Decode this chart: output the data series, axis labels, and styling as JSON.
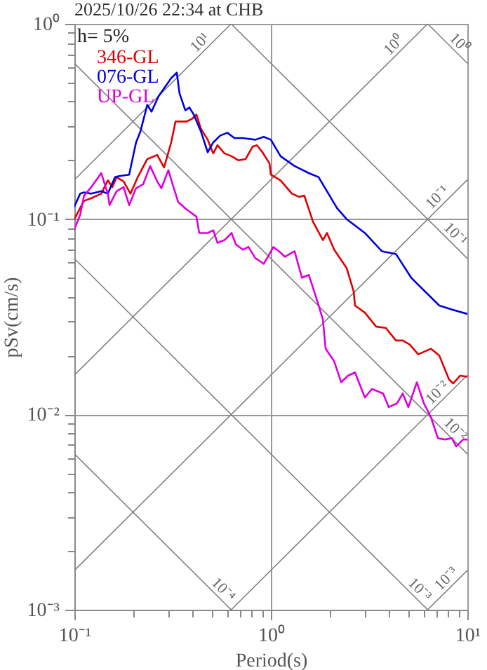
{
  "chart_data": {
    "type": "line",
    "title": "2025/10/26 22:34 at CHB",
    "xlabel": "Period(s)",
    "ylabel": "pSv(cm/s)",
    "legend_title": "h= 5%",
    "legend": "top left",
    "log": "xy",
    "grid": true,
    "xlim": [
      0.1,
      10
    ],
    "ylim": [
      0.001,
      1
    ],
    "xticks": [
      {
        "value": 0.1,
        "label": "10⁻¹"
      },
      {
        "value": 0.2,
        "label": null
      },
      {
        "value": 0.3,
        "label": null
      },
      {
        "value": 0.4,
        "label": null
      },
      {
        "value": 0.5,
        "label": null
      },
      {
        "value": 0.6,
        "label": null
      },
      {
        "value": 0.7,
        "label": null
      },
      {
        "value": 0.8,
        "label": null
      },
      {
        "value": 0.9,
        "label": null
      },
      {
        "value": 1,
        "label": "10⁰"
      },
      {
        "value": 2,
        "label": null
      },
      {
        "value": 3,
        "label": null
      },
      {
        "value": 4,
        "label": null
      },
      {
        "value": 5,
        "label": null
      },
      {
        "value": 6,
        "label": null
      },
      {
        "value": 7,
        "label": null
      },
      {
        "value": 8,
        "label": null
      },
      {
        "value": 9,
        "label": null
      },
      {
        "value": 10,
        "label": "10¹"
      }
    ],
    "yticks": [
      {
        "value": 0.001,
        "label": "10⁻³"
      },
      {
        "value": 0.002,
        "label": null
      },
      {
        "value": 0.003,
        "label": null
      },
      {
        "value": 0.004,
        "label": null
      },
      {
        "value": 0.005,
        "label": null
      },
      {
        "value": 0.006,
        "label": null
      },
      {
        "value": 0.007,
        "label": null
      },
      {
        "value": 0.008,
        "label": null
      },
      {
        "value": 0.009,
        "label": null
      },
      {
        "value": 0.01,
        "label": "10⁻²"
      },
      {
        "value": 0.02,
        "label": null
      },
      {
        "value": 0.03,
        "label": null
      },
      {
        "value": 0.04,
        "label": null
      },
      {
        "value": 0.05,
        "label": null
      },
      {
        "value": 0.06,
        "label": null
      },
      {
        "value": 0.07,
        "label": null
      },
      {
        "value": 0.08,
        "label": null
      },
      {
        "value": 0.09,
        "label": null
      },
      {
        "value": 0.1,
        "label": "10⁻¹"
      },
      {
        "value": 0.2,
        "label": null
      },
      {
        "value": 0.3,
        "label": null
      },
      {
        "value": 0.4,
        "label": null
      },
      {
        "value": 0.5,
        "label": null
      },
      {
        "value": 0.6,
        "label": null
      },
      {
        "value": 0.7,
        "label": null
      },
      {
        "value": 0.8,
        "label": null
      },
      {
        "value": 0.9,
        "label": null
      },
      {
        "value": 1,
        "label": "10⁰"
      }
    ],
    "series": [
      {
        "color": "#808080",
        "x": [
          0.1,
          0.628
        ],
        "values": [
          0.159,
          1
        ]
      },
      {
        "color": "#808080",
        "x": [
          0.1,
          6.28
        ],
        "values": [
          0.0159,
          1
        ]
      },
      {
        "color": "#808080",
        "x": [
          0.1,
          10
        ],
        "values": [
          0.00159,
          0.159
        ]
      },
      {
        "color": "#808080",
        "x": [
          0.628,
          10
        ],
        "values": [
          0.001,
          0.0159
        ]
      },
      {
        "color": "#808080",
        "x": [
          6.28,
          10
        ],
        "values": [
          0.001,
          0.00159
        ]
      },
      {
        "color": "#808080",
        "x": [
          6.28,
          10
        ],
        "values": [
          1,
          0.628
        ]
      },
      {
        "color": "#808080",
        "x": [
          0.628,
          10
        ],
        "values": [
          1,
          0.0628
        ]
      },
      {
        "color": "#808080",
        "x": [
          0.1,
          10
        ],
        "values": [
          0.628,
          0.00628
        ]
      },
      {
        "color": "#808080",
        "x": [
          0.1,
          6.28
        ],
        "values": [
          0.0628,
          0.001
        ]
      },
      {
        "color": "#808080",
        "x": [
          0.1,
          0.628
        ],
        "values": [
          0.00628,
          0.001
        ]
      },
      {
        "name": "346-GL",
        "color": "#e00000",
        "x": [
          0.1,
          0.107,
          0.112,
          0.122,
          0.137,
          0.148,
          0.156,
          0.164,
          0.178,
          0.193,
          0.21,
          0.235,
          0.264,
          0.286,
          0.311,
          0.327,
          0.373,
          0.398,
          0.418,
          0.44,
          0.477,
          0.509,
          0.535,
          0.581,
          0.631,
          0.685,
          0.744,
          0.807,
          0.849,
          0.906,
          0.984,
          1.0,
          1.12,
          1.28,
          1.39,
          1.48,
          1.64,
          1.84,
          1.93,
          2.1,
          2.43,
          2.64,
          2.68,
          3.01,
          3.43,
          3.85,
          4.33,
          4.69,
          5.09,
          5.62,
          6.52,
          7.2,
          8.07,
          8.48,
          9.2,
          10
        ],
        "values": [
          0.1,
          0.114,
          0.124,
          0.128,
          0.135,
          0.158,
          0.146,
          0.164,
          0.156,
          0.135,
          0.164,
          0.203,
          0.213,
          0.184,
          0.247,
          0.316,
          0.316,
          0.327,
          0.343,
          0.291,
          0.255,
          0.217,
          0.239,
          0.217,
          0.21,
          0.2,
          0.203,
          0.235,
          0.239,
          0.22,
          0.193,
          0.169,
          0.158,
          0.135,
          0.13,
          0.132,
          0.0968,
          0.0781,
          0.0849,
          0.0697,
          0.0562,
          0.0425,
          0.0361,
          0.0332,
          0.0282,
          0.0277,
          0.0239,
          0.0239,
          0.0228,
          0.0203,
          0.0217,
          0.02,
          0.0151,
          0.0144,
          0.0158,
          0.0156
        ]
      },
      {
        "name": "076-GL",
        "color": "#0000e0",
        "x": [
          0.1,
          0.107,
          0.112,
          0.122,
          0.137,
          0.148,
          0.161,
          0.169,
          0.19,
          0.206,
          0.217,
          0.235,
          0.247,
          0.268,
          0.311,
          0.332,
          0.343,
          0.367,
          0.385,
          0.405,
          0.44,
          0.477,
          0.509,
          0.553,
          0.601,
          0.652,
          0.72,
          0.834,
          0.92,
          1.0,
          1.12,
          1.32,
          1.56,
          1.75,
          2.17,
          2.43,
          3.01,
          3.67,
          4.33,
          5.18,
          7.2,
          8.48,
          10
        ],
        "values": [
          0.116,
          0.135,
          0.137,
          0.135,
          0.139,
          0.135,
          0.164,
          0.166,
          0.169,
          0.247,
          0.282,
          0.385,
          0.355,
          0.425,
          0.527,
          0.562,
          0.44,
          0.361,
          0.373,
          0.343,
          0.282,
          0.22,
          0.247,
          0.268,
          0.277,
          0.26,
          0.26,
          0.255,
          0.264,
          0.255,
          0.21,
          0.187,
          0.172,
          0.164,
          0.114,
          0.1,
          0.0849,
          0.0685,
          0.0663,
          0.0501,
          0.0361,
          0.0343,
          0.0327
        ]
      },
      {
        "name": "UP-GL",
        "color": "#dd00dd",
        "x": [
          0.1,
          0.107,
          0.112,
          0.122,
          0.137,
          0.148,
          0.151,
          0.164,
          0.178,
          0.19,
          0.206,
          0.224,
          0.243,
          0.264,
          0.277,
          0.301,
          0.316,
          0.338,
          0.373,
          0.418,
          0.432,
          0.477,
          0.509,
          0.535,
          0.581,
          0.631,
          0.663,
          0.72,
          0.769,
          0.834,
          0.877,
          0.92,
          0.984,
          1.03,
          1.1,
          1.18,
          1.32,
          1.44,
          1.56,
          1.69,
          1.84,
          1.9,
          2.1,
          2.28,
          2.47,
          2.68,
          3.01,
          3.27,
          3.73,
          3.98,
          4.39,
          4.69,
          5.01,
          5.53,
          6.01,
          6.52,
          7.08,
          7.69,
          8.34,
          8.77,
          9.52,
          10
        ],
        "values": [
          0.0891,
          0.105,
          0.132,
          0.146,
          0.172,
          0.135,
          0.118,
          0.139,
          0.146,
          0.118,
          0.144,
          0.151,
          0.187,
          0.156,
          0.144,
          0.178,
          0.151,
          0.122,
          0.112,
          0.103,
          0.0849,
          0.0849,
          0.0877,
          0.0756,
          0.0781,
          0.0849,
          0.0744,
          0.0697,
          0.072,
          0.0631,
          0.0611,
          0.059,
          0.0663,
          0.072,
          0.0685,
          0.0641,
          0.0685,
          0.0501,
          0.0518,
          0.0405,
          0.0306,
          0.0217,
          0.0187,
          0.0146,
          0.0158,
          0.0164,
          0.0122,
          0.0135,
          0.0128,
          0.0109,
          0.0114,
          0.0128,
          0.0109,
          0.0146,
          0.0114,
          0.0097,
          0.00756,
          0.00744,
          0.00756,
          0.00685,
          0.00744,
          0.00744
        ]
      }
    ],
    "annotations": [
      {
        "text": "10¹",
        "x": 0.469,
        "y": 0.746
      },
      {
        "text": "10⁰",
        "x": 4.54,
        "y": 0.723
      },
      {
        "text": "10⁰",
        "x": 8.48,
        "y": 0.741
      },
      {
        "text": "10⁻¹",
        "x": 7.56,
        "y": 0.1203
      },
      {
        "text": "10⁻¹",
        "x": 8.07,
        "y": 0.0779
      },
      {
        "text": "10⁻²",
        "x": 7.56,
        "y": 0.01203
      },
      {
        "text": "10⁻²",
        "x": 8.07,
        "y": 0.00779
      },
      {
        "text": "10⁻⁴",
        "x": 0.532,
        "y": 0.00118
      },
      {
        "text": "10⁻³",
        "x": 5.32,
        "y": 0.00118
      },
      {
        "text": "10⁻³",
        "x": 8.4,
        "y": 0.00134
      }
    ]
  }
}
